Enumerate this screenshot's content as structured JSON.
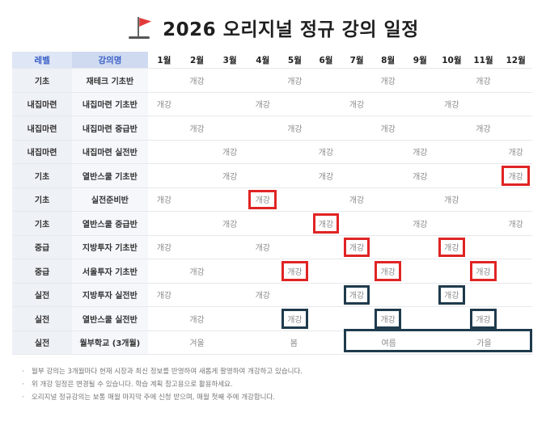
{
  "title": "2026 오리지널 정규 강의 일정",
  "icon": "red-flag-icon",
  "colors": {
    "highlight_red": "#e02424",
    "highlight_navy": "#1f3b4d",
    "header_blue": "#3a5fc8"
  },
  "header": {
    "level": "레벨",
    "course": "강의명",
    "months": [
      "1월",
      "2월",
      "3월",
      "4월",
      "5월",
      "6월",
      "7월",
      "8월",
      "9월",
      "10월",
      "11월",
      "12월"
    ]
  },
  "rows": [
    {
      "level": "기초",
      "course": "재테크 기초반",
      "cells": [
        "",
        "개강",
        "",
        "",
        "개강",
        "",
        "",
        "개강",
        "",
        "",
        "개강",
        ""
      ]
    },
    {
      "level": "내집마련",
      "course": "내집마련 기초반",
      "cells": [
        "개강",
        "",
        "",
        "개강",
        "",
        "",
        "개강",
        "",
        "",
        "개강",
        "",
        ""
      ]
    },
    {
      "level": "내집마련",
      "course": "내집마련 중급반",
      "cells": [
        "",
        "개강",
        "",
        "",
        "개강",
        "",
        "",
        "개강",
        "",
        "",
        "개강",
        ""
      ]
    },
    {
      "level": "내집마련",
      "course": "내집마련 실전반",
      "cells": [
        "",
        "",
        "개강",
        "",
        "",
        "개강",
        "",
        "",
        "개강",
        "",
        "",
        "개강"
      ]
    },
    {
      "level": "기초",
      "course": "열반스쿨 기초반",
      "cells": [
        "",
        "",
        "개강",
        "",
        "",
        "개강",
        "",
        "",
        "개강",
        "",
        "",
        "개강"
      ]
    },
    {
      "level": "기초",
      "course": "실전준비반",
      "cells": [
        "개강",
        "",
        "",
        "개강",
        "",
        "",
        "개강",
        "",
        "",
        "개강",
        "",
        ""
      ]
    },
    {
      "level": "기초",
      "course": "열반스쿨 중급반",
      "cells": [
        "",
        "",
        "개강",
        "",
        "",
        "개강",
        "",
        "",
        "개강",
        "",
        "",
        "개강"
      ]
    },
    {
      "level": "중급",
      "course": "지방투자 기초반",
      "cells": [
        "개강",
        "",
        "",
        "개강",
        "",
        "",
        "개강",
        "",
        "",
        "개강",
        "",
        ""
      ]
    },
    {
      "level": "중급",
      "course": "서울투자 기초반",
      "cells": [
        "",
        "개강",
        "",
        "",
        "개강",
        "",
        "",
        "개강",
        "",
        "",
        "개강",
        ""
      ]
    },
    {
      "level": "실전",
      "course": "지방투자 실전반",
      "cells": [
        "개강",
        "",
        "",
        "개강",
        "",
        "",
        "개강",
        "",
        "",
        "개강",
        "",
        ""
      ]
    },
    {
      "level": "실전",
      "course": "열반스쿨 실전반",
      "cells": [
        "",
        "개강",
        "",
        "",
        "개강",
        "",
        "",
        "개강",
        "",
        "",
        "개강",
        ""
      ]
    }
  ],
  "last_row": {
    "level": "실전",
    "course": "월부학교 (3개월)",
    "winter": "겨울",
    "spring": "봄",
    "summer": "여름",
    "autumn": "가을"
  },
  "notes": [
    "월부 강의는 3개월마다 현재 시장과 최신 정보를 반영하여 새롭게 촬영하여 개강하고 있습니다.",
    "위 개강 일정은 변경될 수 있습니다. 학습 계획 참고용으로 활용하세요.",
    "오리지널 정규강의는 보통 매월 마지막 주에 신청 받으며, 매월 첫째 주에 개강합니다."
  ]
}
